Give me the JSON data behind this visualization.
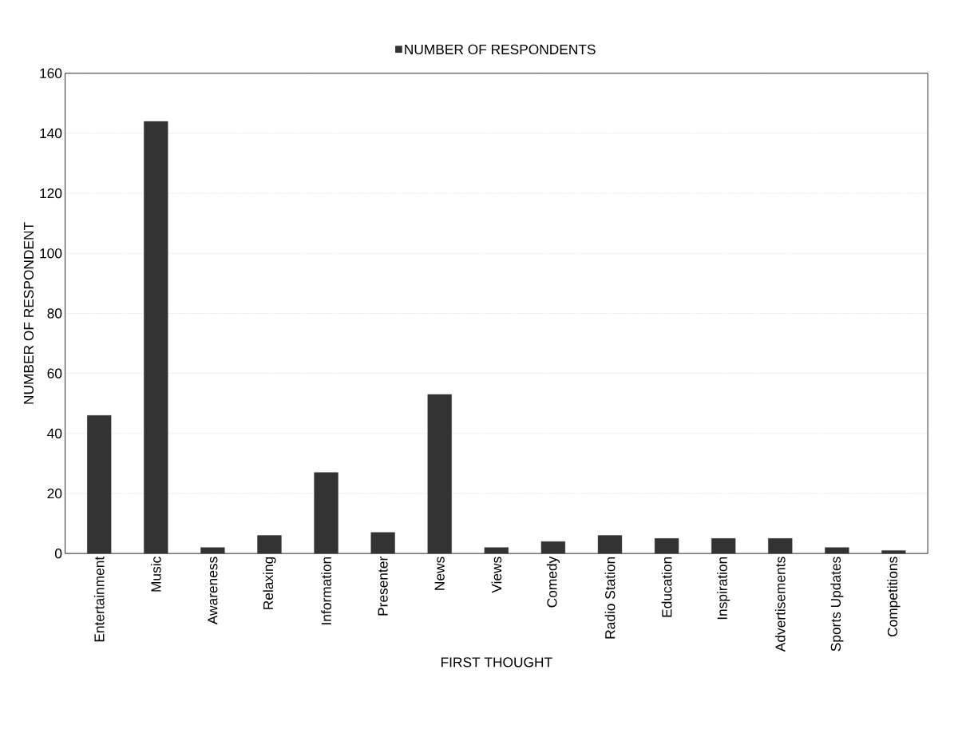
{
  "chart_data": {
    "type": "bar",
    "xlabel": "FIRST THOUGHT",
    "ylabel": "NUMBER OF RESPONDENT",
    "categories": [
      "Entertainment",
      "Music",
      "Awareness",
      "Relaxing",
      "Information",
      "Presenter",
      "News",
      "Views",
      "Comedy",
      "Radio Station",
      "Education",
      "Inspiration",
      "Advertisements",
      "Sports Updates",
      "Competitions"
    ],
    "series": [
      {
        "name": "NUMBER OF RESPONDENTS",
        "color": "#333333",
        "values": [
          46,
          144,
          2,
          6,
          27,
          7,
          53,
          2,
          4,
          6,
          5,
          5,
          5,
          2,
          1
        ]
      }
    ],
    "ylim": [
      0,
      160
    ],
    "yticks": [
      0,
      20,
      40,
      60,
      80,
      100,
      120,
      140,
      160
    ],
    "grid": "y",
    "legend": "top"
  }
}
